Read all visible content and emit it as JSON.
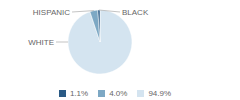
{
  "chart_data": {
    "type": "pie",
    "categories": [
      "WHITE",
      "HISPANIC",
      "BLACK"
    ],
    "values": [
      94.9,
      4.0,
      1.1
    ],
    "value_labels": [
      "94.9%",
      "4.0%",
      "1.1%"
    ],
    "colors": [
      "#d4e4f0",
      "#7da8c4",
      "#2a5a85"
    ],
    "legend": "bottom"
  }
}
